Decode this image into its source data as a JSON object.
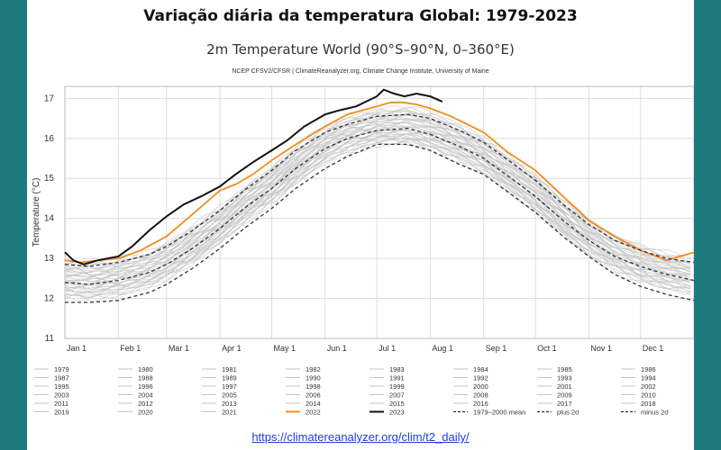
{
  "slide_title": "Variação diária da temperatura Global: 1979-2023",
  "source_link": "https://climatereanalyzer.org/clim/t2_daily/",
  "chart_data": {
    "type": "line",
    "title": "2m Temperature World (90°S–90°N, 0–360°E)",
    "subtitle": "NCEP CFSV2/CFSR | ClimateReanalyzer.org, Climate Change Institute, University of Maine",
    "ylabel": "Temperature (°C)",
    "xlabel": "",
    "ylim": [
      11,
      17.3
    ],
    "xlim": [
      1,
      366
    ],
    "yticks": [
      11,
      12,
      13,
      14,
      15,
      16,
      17
    ],
    "xticks": [
      {
        "label": "Jan 1",
        "day": 1
      },
      {
        "label": "Feb 1",
        "day": 32
      },
      {
        "label": "Mar 1",
        "day": 60
      },
      {
        "label": "Apr 1",
        "day": 91
      },
      {
        "label": "May 1",
        "day": 121
      },
      {
        "label": "Jun 1",
        "day": 152
      },
      {
        "label": "Jul 1",
        "day": 182
      },
      {
        "label": "Aug 1",
        "day": 213
      },
      {
        "label": "Sep 1",
        "day": 244
      },
      {
        "label": "Oct 1",
        "day": 274
      },
      {
        "label": "Nov 1",
        "day": 305
      },
      {
        "label": "Dec 1",
        "day": 335
      }
    ],
    "grid": true,
    "legend_position": "bottom",
    "legend_columns": 8,
    "background_years": [
      "1979",
      "1980",
      "1981",
      "1982",
      "1983",
      "1984",
      "1985",
      "1986",
      "1987",
      "1988",
      "1989",
      "1990",
      "1991",
      "1992",
      "1993",
      "1994",
      "1995",
      "1996",
      "1997",
      "1998",
      "1999",
      "2000",
      "2001",
      "2002",
      "2003",
      "2004",
      "2005",
      "2006",
      "2007",
      "2008",
      "2009",
      "2010",
      "2011",
      "2012",
      "2013",
      "2014",
      "2015",
      "2016",
      "2017",
      "2018",
      "2019",
      "2020",
      "2021"
    ],
    "background_color": "#c4c4c4",
    "series": [
      {
        "name": "2022",
        "color": "#f28c1c",
        "style": "solid",
        "x": [
          1,
          10,
          20,
          32,
          45,
          60,
          75,
          91,
          100,
          110,
          121,
          135,
          152,
          165,
          182,
          190,
          197,
          205,
          213,
          225,
          244,
          258,
          274,
          290,
          305,
          320,
          335,
          350,
          366
        ],
        "y": [
          12.95,
          12.9,
          12.95,
          13.0,
          13.2,
          13.55,
          14.1,
          14.7,
          14.85,
          15.1,
          15.45,
          15.85,
          16.3,
          16.6,
          16.8,
          16.9,
          16.9,
          16.85,
          16.75,
          16.55,
          16.15,
          15.65,
          15.2,
          14.55,
          13.95,
          13.55,
          13.2,
          12.95,
          13.15
        ]
      },
      {
        "name": "2023",
        "color": "#111111",
        "style": "solid",
        "x": [
          1,
          6,
          12,
          20,
          32,
          40,
          50,
          60,
          70,
          80,
          91,
          100,
          110,
          121,
          130,
          140,
          152,
          160,
          170,
          182,
          186,
          192,
          198,
          205,
          213,
          220
        ],
        "y": [
          13.15,
          12.95,
          12.85,
          12.95,
          13.05,
          13.3,
          13.7,
          14.05,
          14.35,
          14.55,
          14.8,
          15.1,
          15.4,
          15.7,
          15.95,
          16.3,
          16.6,
          16.7,
          16.8,
          17.05,
          17.22,
          17.12,
          17.05,
          17.12,
          17.05,
          16.92
        ]
      },
      {
        "name": "1979–2000 mean",
        "color": "#333333",
        "style": "dashed",
        "x": [
          1,
          15,
          32,
          50,
          60,
          75,
          91,
          105,
          121,
          135,
          152,
          165,
          182,
          200,
          213,
          230,
          244,
          260,
          274,
          290,
          305,
          320,
          335,
          350,
          366
        ],
        "y": [
          12.4,
          12.35,
          12.45,
          12.65,
          12.85,
          13.25,
          13.75,
          14.25,
          14.75,
          15.25,
          15.75,
          16.0,
          16.2,
          16.25,
          16.1,
          15.8,
          15.5,
          15.0,
          14.55,
          13.95,
          13.45,
          13.05,
          12.8,
          12.6,
          12.45
        ]
      },
      {
        "name": "plus 2σ",
        "color": "#333333",
        "style": "dashed",
        "x": [
          1,
          15,
          32,
          50,
          60,
          75,
          91,
          105,
          121,
          135,
          152,
          165,
          182,
          200,
          213,
          230,
          244,
          260,
          274,
          290,
          305,
          320,
          335,
          350,
          366
        ],
        "y": [
          12.85,
          12.8,
          12.9,
          13.1,
          13.3,
          13.7,
          14.2,
          14.7,
          15.2,
          15.7,
          16.15,
          16.35,
          16.55,
          16.6,
          16.5,
          16.2,
          15.9,
          15.4,
          14.95,
          14.35,
          13.85,
          13.45,
          13.2,
          13.0,
          12.9
        ]
      },
      {
        "name": "minus 2σ",
        "color": "#333333",
        "style": "dashed",
        "x": [
          1,
          15,
          32,
          50,
          60,
          75,
          91,
          105,
          121,
          135,
          152,
          165,
          182,
          200,
          213,
          230,
          244,
          260,
          274,
          290,
          305,
          320,
          335,
          350,
          366
        ],
        "y": [
          11.9,
          11.9,
          11.95,
          12.15,
          12.35,
          12.75,
          13.25,
          13.75,
          14.25,
          14.75,
          15.25,
          15.55,
          15.85,
          15.85,
          15.7,
          15.35,
          15.1,
          14.6,
          14.15,
          13.55,
          13.05,
          12.6,
          12.3,
          12.1,
          11.95
        ]
      }
    ]
  }
}
